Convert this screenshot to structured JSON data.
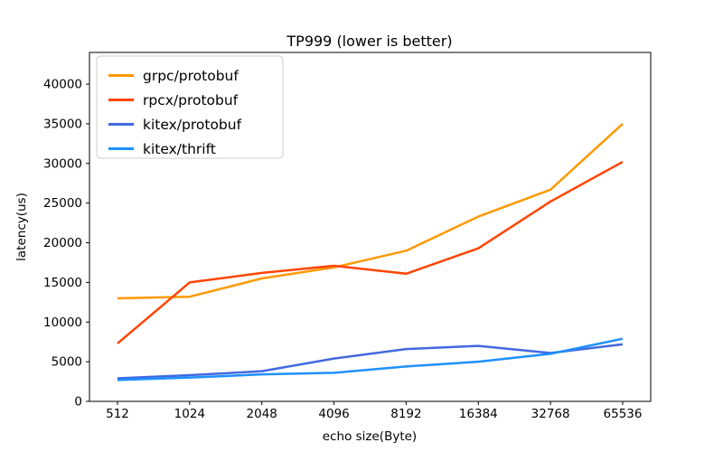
{
  "chart_data": {
    "type": "line",
    "title": "TP999 (lower is better)",
    "xlabel": "echo size(Byte)",
    "ylabel": "latency(us)",
    "categories": [
      "512",
      "1024",
      "2048",
      "4096",
      "8192",
      "16384",
      "32768",
      "65536"
    ],
    "series": [
      {
        "name": "grpc/protobuf",
        "color": "#ff9900",
        "values": [
          13000,
          13200,
          15500,
          16900,
          19000,
          23300,
          26700,
          35000
        ]
      },
      {
        "name": "rpcx/protobuf",
        "color": "#ff4500",
        "values": [
          7300,
          15000,
          16200,
          17100,
          16100,
          19300,
          25200,
          30200
        ]
      },
      {
        "name": "kitex/protobuf",
        "color": "#4169e1",
        "values": [
          2900,
          3300,
          3800,
          5400,
          6600,
          7000,
          6100,
          7200
        ]
      },
      {
        "name": "kitex/thrift",
        "color": "#1e90ff",
        "values": [
          2700,
          3000,
          3400,
          3600,
          4400,
          5000,
          6000,
          7900
        ]
      }
    ],
    "yticks": [
      0,
      5000,
      10000,
      15000,
      20000,
      25000,
      30000,
      35000,
      40000
    ],
    "ylim": [
      0,
      44000
    ],
    "grid": false,
    "legend_position": "upper-left",
    "frame_color": "#000000",
    "background": "#ffffff",
    "legend_border_color": "#cccccc"
  }
}
